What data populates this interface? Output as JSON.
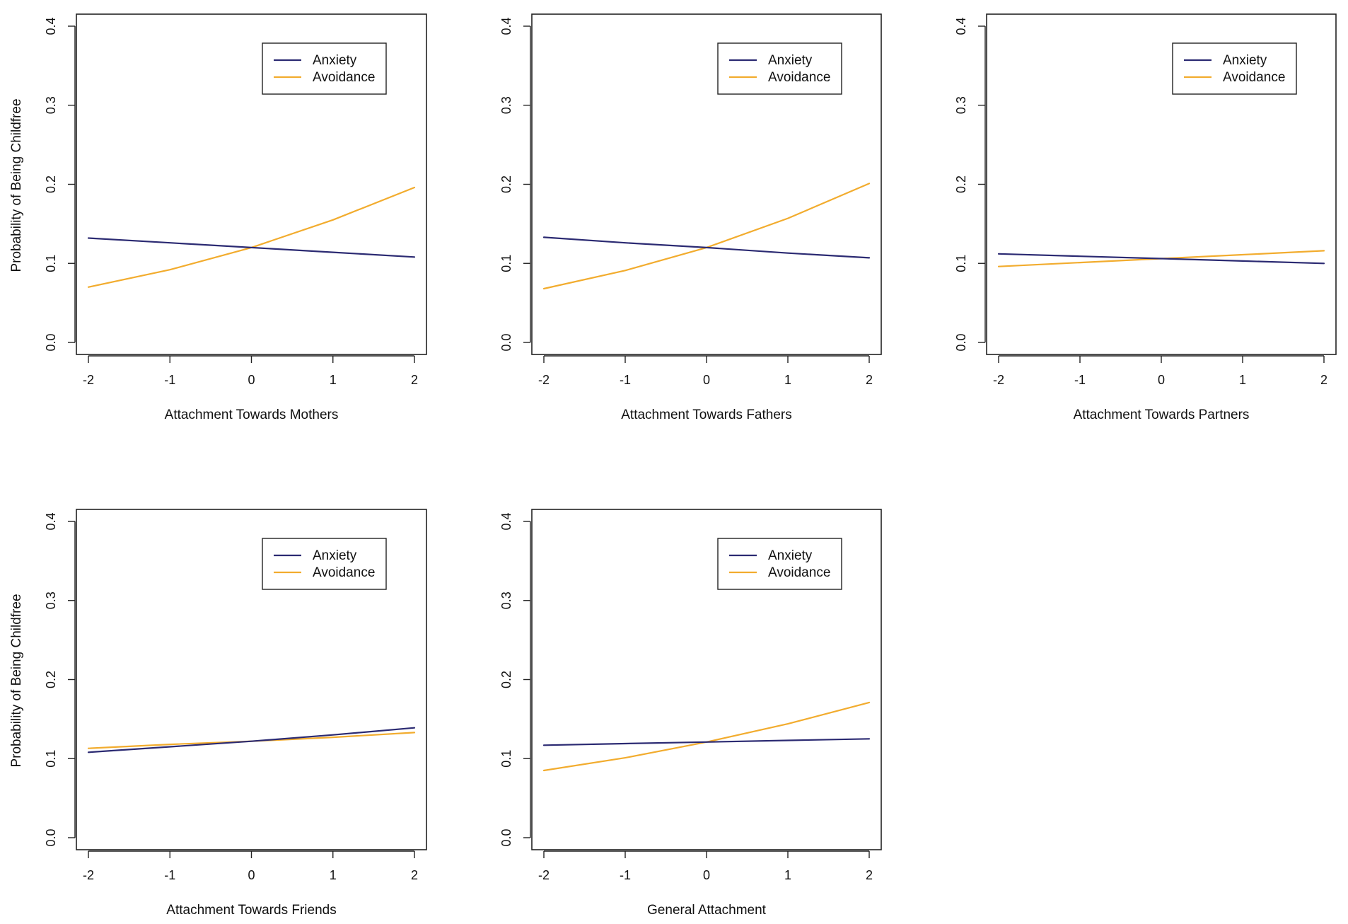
{
  "figure": {
    "ylabel_left": "Probability of Being Childfree"
  },
  "colors": {
    "Anxiety": "#2b2a72",
    "Avoidance": "#f2ac2e"
  },
  "chart_data": [
    {
      "type": "line",
      "xlabel": "Attachment Towards Mothers",
      "ylabel": "Probability of Being Childfree",
      "xlim": [
        -2,
        2
      ],
      "ylim": [
        0,
        0.4
      ],
      "xticks": [
        "-2",
        "-1",
        "0",
        "1",
        "2"
      ],
      "yticks": [
        "0.0",
        "0.1",
        "0.2",
        "0.3",
        "0.4"
      ],
      "legend": {
        "position": "top-right",
        "entries": [
          "Anxiety",
          "Avoidance"
        ]
      },
      "series": [
        {
          "name": "Anxiety",
          "color": "#2b2a72",
          "x": [
            -2,
            -1,
            0,
            1,
            2
          ],
          "y": [
            0.132,
            0.126,
            0.12,
            0.114,
            0.108
          ]
        },
        {
          "name": "Avoidance",
          "color": "#f2ac2e",
          "x": [
            -2,
            -1,
            0,
            1,
            2
          ],
          "y": [
            0.07,
            0.092,
            0.12,
            0.155,
            0.196
          ]
        }
      ]
    },
    {
      "type": "line",
      "xlabel": "Attachment Towards Fathers",
      "ylabel": "",
      "xlim": [
        -2,
        2
      ],
      "ylim": [
        0,
        0.4
      ],
      "xticks": [
        "-2",
        "-1",
        "0",
        "1",
        "2"
      ],
      "yticks": [
        "0.0",
        "0.1",
        "0.2",
        "0.3",
        "0.4"
      ],
      "legend": {
        "position": "top-right",
        "entries": [
          "Anxiety",
          "Avoidance"
        ]
      },
      "series": [
        {
          "name": "Anxiety",
          "color": "#2b2a72",
          "x": [
            -2,
            -1,
            0,
            1,
            2
          ],
          "y": [
            0.133,
            0.126,
            0.12,
            0.113,
            0.107
          ]
        },
        {
          "name": "Avoidance",
          "color": "#f2ac2e",
          "x": [
            -2,
            -1,
            0,
            1,
            2
          ],
          "y": [
            0.068,
            0.091,
            0.12,
            0.157,
            0.201
          ]
        }
      ]
    },
    {
      "type": "line",
      "xlabel": "Attachment Towards Partners",
      "ylabel": "",
      "xlim": [
        -2,
        2
      ],
      "ylim": [
        0,
        0.4
      ],
      "xticks": [
        "-2",
        "-1",
        "0",
        "1",
        "2"
      ],
      "yticks": [
        "0.0",
        "0.1",
        "0.2",
        "0.3",
        "0.4"
      ],
      "legend": {
        "position": "top-right",
        "entries": [
          "Anxiety",
          "Avoidance"
        ]
      },
      "series": [
        {
          "name": "Anxiety",
          "color": "#2b2a72",
          "x": [
            -2,
            -1,
            0,
            1,
            2
          ],
          "y": [
            0.112,
            0.109,
            0.106,
            0.103,
            0.1
          ]
        },
        {
          "name": "Avoidance",
          "color": "#f2ac2e",
          "x": [
            -2,
            -1,
            0,
            1,
            2
          ],
          "y": [
            0.096,
            0.101,
            0.106,
            0.111,
            0.116
          ]
        }
      ]
    },
    {
      "type": "line",
      "xlabel": "Attachment Towards Friends",
      "ylabel": "Probability of Being Childfree",
      "xlim": [
        -2,
        2
      ],
      "ylim": [
        0,
        0.4
      ],
      "xticks": [
        "-2",
        "-1",
        "0",
        "1",
        "2"
      ],
      "yticks": [
        "0.0",
        "0.1",
        "0.2",
        "0.3",
        "0.4"
      ],
      "legend": {
        "position": "top-right",
        "entries": [
          "Anxiety",
          "Avoidance"
        ]
      },
      "series": [
        {
          "name": "Anxiety",
          "color": "#2b2a72",
          "x": [
            -2,
            -1,
            0,
            1,
            2
          ],
          "y": [
            0.108,
            0.115,
            0.122,
            0.13,
            0.139
          ]
        },
        {
          "name": "Avoidance",
          "color": "#f2ac2e",
          "x": [
            -2,
            -1,
            0,
            1,
            2
          ],
          "y": [
            0.113,
            0.118,
            0.122,
            0.127,
            0.133
          ]
        }
      ]
    },
    {
      "type": "line",
      "xlabel": "General Attachment",
      "ylabel": "",
      "xlim": [
        -2,
        2
      ],
      "ylim": [
        0,
        0.4
      ],
      "xticks": [
        "-2",
        "-1",
        "0",
        "1",
        "2"
      ],
      "yticks": [
        "0.0",
        "0.1",
        "0.2",
        "0.3",
        "0.4"
      ],
      "legend": {
        "position": "top-right",
        "entries": [
          "Anxiety",
          "Avoidance"
        ]
      },
      "series": [
        {
          "name": "Anxiety",
          "color": "#2b2a72",
          "x": [
            -2,
            -1,
            0,
            1,
            2
          ],
          "y": [
            0.117,
            0.119,
            0.121,
            0.123,
            0.125
          ]
        },
        {
          "name": "Avoidance",
          "color": "#f2ac2e",
          "x": [
            -2,
            -1,
            0,
            1,
            2
          ],
          "y": [
            0.085,
            0.101,
            0.121,
            0.144,
            0.171
          ]
        }
      ]
    }
  ]
}
